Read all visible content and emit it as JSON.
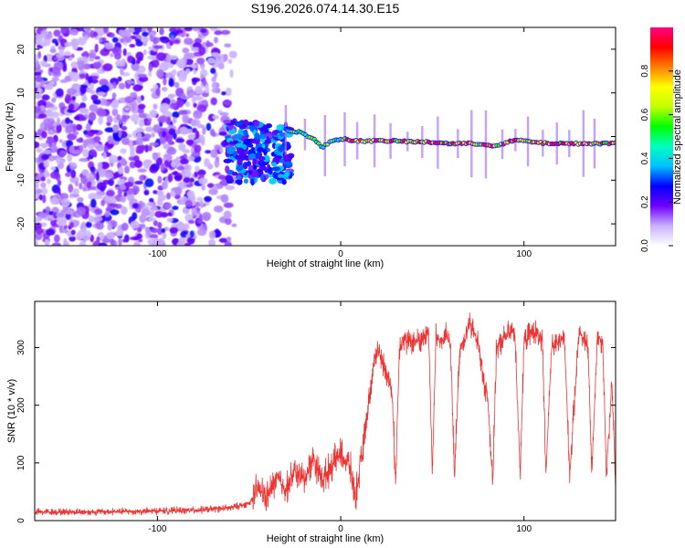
{
  "title": "S196.2026.074.14.30.E15",
  "chart_data": [
    {
      "type": "heatmap",
      "xlabel": "Height of straight line (km)",
      "ylabel": "Frequency (Hz)",
      "xlim": [
        -167,
        150
      ],
      "ylim": [
        -25,
        25
      ],
      "xticks": [
        -100,
        0,
        100
      ],
      "yticks": [
        -20,
        -10,
        0,
        10,
        20
      ],
      "grid": false,
      "description": "Doppler spectrum vs height; noisy broadband below -60 km, coherent narrow line near 0 Hz above -30 km",
      "trace_frequency_hz": {
        "x": [
          -30,
          -22,
          -15,
          -10,
          -5,
          0,
          5,
          10,
          20,
          30,
          40,
          50,
          60,
          70,
          80,
          85,
          90,
          95,
          100,
          110,
          120,
          130,
          140,
          150
        ],
        "y": [
          1.5,
          1.0,
          -0.5,
          -2.5,
          -1.0,
          -0.5,
          -0.8,
          -1.0,
          -1.0,
          -1.0,
          -1.2,
          -1.3,
          -1.6,
          -1.6,
          -1.8,
          -2.2,
          -1.5,
          -0.8,
          -1.0,
          -1.5,
          -1.6,
          -1.6,
          -1.6,
          -1.5
        ]
      },
      "colorbar": {
        "label": "Normalized spectral amplitude",
        "range": [
          0,
          1
        ],
        "ticks": [
          "0.0",
          "0.2",
          "0.4",
          "0.6",
          "0.8"
        ],
        "colors": [
          "#ffffff",
          "#c8b0ff",
          "#7000ff",
          "#0000ff",
          "#00c0ff",
          "#00ffc0",
          "#00ff00",
          "#c0ff00",
          "#ffff00",
          "#ff8000",
          "#ff0000",
          "#ff0080"
        ]
      }
    },
    {
      "type": "line",
      "xlabel": "Height of straight line (km)",
      "ylabel": "SNR (10 * v/v)",
      "xlim": [
        -167,
        150
      ],
      "ylim": [
        0,
        380
      ],
      "xticks": [
        -100,
        0,
        100
      ],
      "yticks": [
        0,
        100,
        200,
        300
      ],
      "grid": false,
      "series": [
        {
          "name": "SNR",
          "color": "#ee3333",
          "x": [
            -167,
            -140,
            -110,
            -80,
            -60,
            -50,
            -45,
            -40,
            -35,
            -30,
            -25,
            -20,
            -15,
            -10,
            -5,
            0,
            5,
            8,
            12,
            15,
            18,
            20,
            22,
            25,
            28,
            30,
            32,
            34,
            36,
            40,
            45,
            48,
            50,
            52,
            55,
            58,
            60,
            62,
            65,
            68,
            70,
            72,
            75,
            78,
            80,
            83,
            85,
            88,
            90,
            95,
            98,
            100,
            105,
            110,
            112,
            115,
            120,
            122,
            125,
            130,
            135,
            137,
            140,
            143,
            145,
            148,
            150
          ],
          "values": [
            15,
            15,
            16,
            18,
            22,
            30,
            55,
            40,
            75,
            55,
            85,
            70,
            110,
            70,
            95,
            115,
            95,
            40,
            120,
            200,
            270,
            300,
            280,
            260,
            220,
            70,
            300,
            320,
            310,
            310,
            315,
            330,
            80,
            320,
            310,
            320,
            300,
            80,
            300,
            320,
            340,
            330,
            310,
            240,
            220,
            70,
            300,
            310,
            320,
            330,
            80,
            310,
            330,
            310,
            80,
            300,
            310,
            320,
            80,
            330,
            300,
            80,
            320,
            310,
            80,
            240,
            60
          ]
        }
      ]
    }
  ]
}
